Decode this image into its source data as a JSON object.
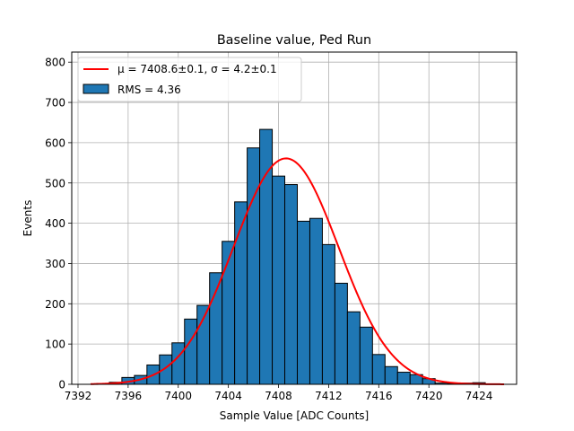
{
  "chart_data": {
    "type": "bar",
    "title": "Baseline value, Ped Run",
    "xlabel": "Sample Value [ADC Counts]",
    "ylabel": "Events",
    "xlim": [
      7391.5,
      7427
    ],
    "ylim": [
      0,
      825
    ],
    "x_ticks": [
      7392,
      7396,
      7400,
      7404,
      7408,
      7412,
      7416,
      7420,
      7424
    ],
    "y_ticks": [
      0,
      100,
      200,
      300,
      400,
      500,
      600,
      700,
      800
    ],
    "grid": true,
    "legend_position": "top-left",
    "bin_width": 1,
    "histogram": {
      "name": "RMS = 4.36",
      "color": "#1f77b4",
      "edgecolor": "#000000",
      "bins": [
        {
          "x": 7394,
          "count": 2
        },
        {
          "x": 7395,
          "count": 5
        },
        {
          "x": 7396,
          "count": 17
        },
        {
          "x": 7397,
          "count": 22
        },
        {
          "x": 7398,
          "count": 48
        },
        {
          "x": 7399,
          "count": 73
        },
        {
          "x": 7400,
          "count": 103
        },
        {
          "x": 7401,
          "count": 162
        },
        {
          "x": 7402,
          "count": 196
        },
        {
          "x": 7403,
          "count": 277
        },
        {
          "x": 7404,
          "count": 355
        },
        {
          "x": 7405,
          "count": 453
        },
        {
          "x": 7406,
          "count": 587
        },
        {
          "x": 7407,
          "count": 633
        },
        {
          "x": 7408,
          "count": 517
        },
        {
          "x": 7409,
          "count": 496
        },
        {
          "x": 7410,
          "count": 405
        },
        {
          "x": 7411,
          "count": 412
        },
        {
          "x": 7412,
          "count": 347
        },
        {
          "x": 7413,
          "count": 251
        },
        {
          "x": 7414,
          "count": 180
        },
        {
          "x": 7415,
          "count": 142
        },
        {
          "x": 7416,
          "count": 74
        },
        {
          "x": 7417,
          "count": 44
        },
        {
          "x": 7418,
          "count": 30
        },
        {
          "x": 7419,
          "count": 24
        },
        {
          "x": 7420,
          "count": 14
        },
        {
          "x": 7421,
          "count": 3
        },
        {
          "x": 7422,
          "count": 2
        },
        {
          "x": 7423,
          "count": 3
        },
        {
          "x": 7424,
          "count": 4
        }
      ]
    },
    "fit": {
      "name": "$\\mu = 7408.6$±0.1, $\\sigma = 4.2$±0.1",
      "label_text": "μ = 7408.6±0.1, σ = 4.2±0.1",
      "type": "gaussian",
      "mu": 7408.6,
      "sigma": 4.2,
      "amplitude": 561,
      "x_range": [
        7393,
        7426
      ],
      "color": "#ff0000"
    }
  }
}
